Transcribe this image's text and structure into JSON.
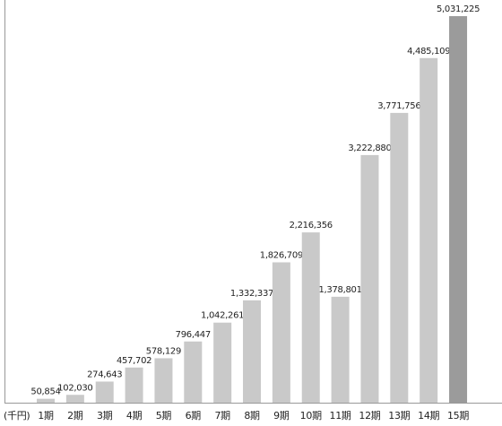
{
  "chart_data": {
    "type": "bar",
    "unit_label": "(千円)",
    "categories": [
      "1期",
      "2期",
      "3期",
      "4期",
      "5期",
      "6期",
      "7期",
      "8期",
      "9期",
      "10期",
      "11期",
      "12期",
      "13期",
      "14期",
      "15期"
    ],
    "values": [
      50854,
      102030,
      274643,
      457702,
      578129,
      796447,
      1042261,
      1332337,
      1826709,
      2216356,
      1378801,
      3222880,
      3771756,
      4485109,
      5031225
    ],
    "value_labels": [
      "50,854",
      "102,030",
      "274,643",
      "457,702",
      "578,129",
      "796,447",
      "1,042,261",
      "1,332,337",
      "1,826,709",
      "2,216,356",
      "1,378,801",
      "3,222,880",
      "3,771,756",
      "4,485,109",
      "5,031,225"
    ],
    "colors": [
      "#c9c9c9",
      "#c9c9c9",
      "#c9c9c9",
      "#c9c9c9",
      "#c9c9c9",
      "#c9c9c9",
      "#c9c9c9",
      "#c9c9c9",
      "#c9c9c9",
      "#c9c9c9",
      "#c9c9c9",
      "#c9c9c9",
      "#c9c9c9",
      "#c9c9c9",
      "#9b9b9b"
    ]
  }
}
